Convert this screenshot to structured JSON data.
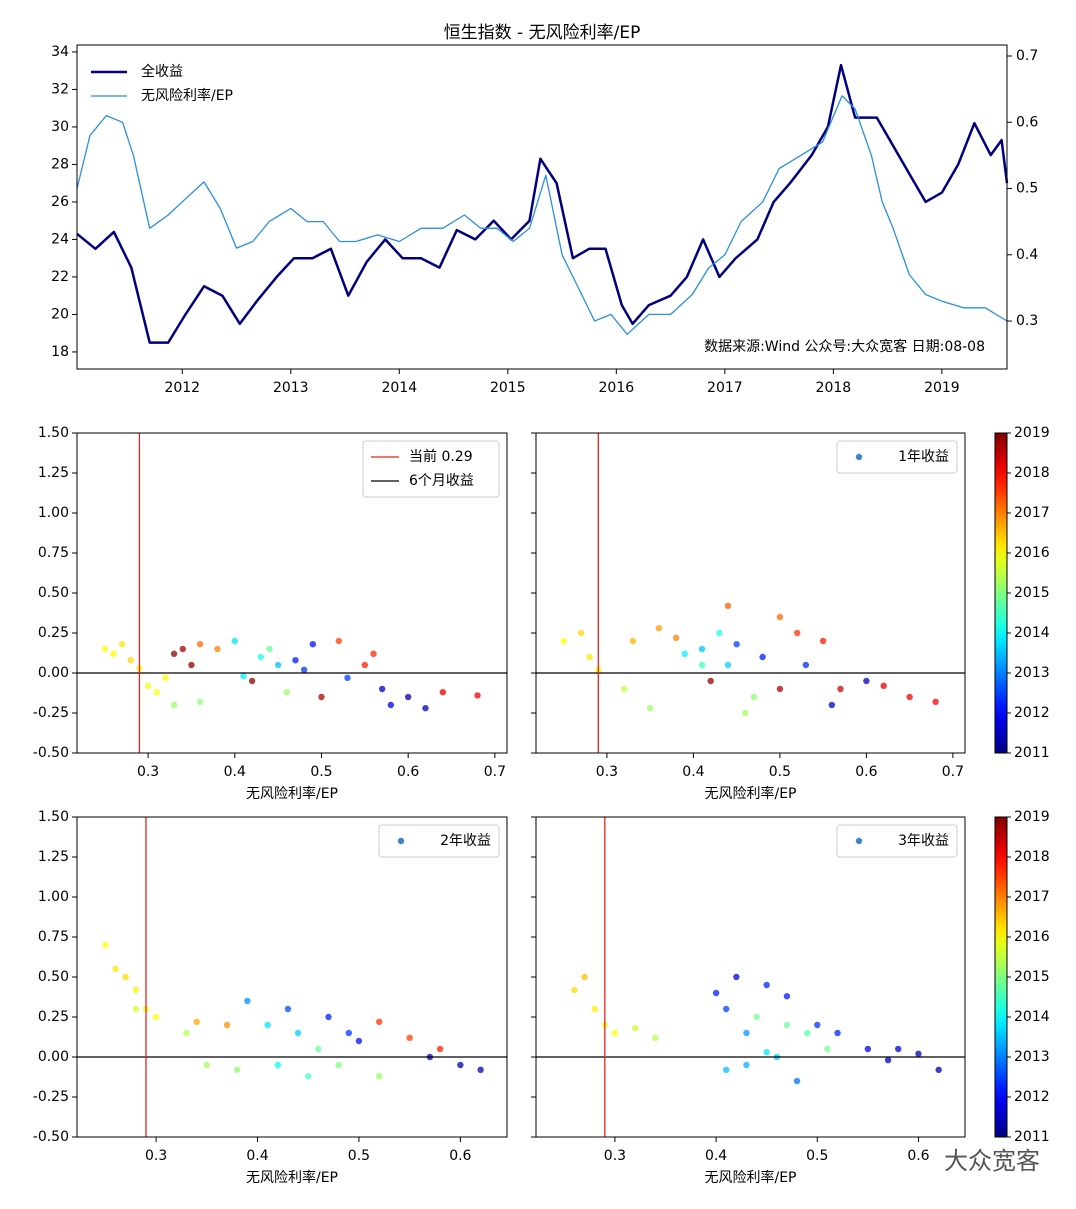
{
  "watermark": "大众宽客",
  "chart_data": [
    {
      "type": "line",
      "title": "恒生指数 - 无风险利率/EP",
      "annotation": "数据来源:Wind  公众号:大众宽客  日期:08-08",
      "legend": "upper left",
      "xlim": [
        2011.03,
        2019.6
      ],
      "xticks": [
        2012,
        2013,
        2014,
        2015,
        2016,
        2017,
        2018,
        2019
      ],
      "ylim": [
        17.09,
        34.37
      ],
      "yticks": [
        18,
        20,
        22,
        24,
        26,
        28,
        30,
        32,
        34
      ],
      "y2lim": [
        0.2276,
        0.7166
      ],
      "y2ticks": [
        0.3,
        0.4,
        0.5,
        0.6,
        0.7
      ],
      "series": [
        {
          "name": "全收益",
          "color": "#00007f",
          "linewidth": 2.5,
          "x": [
            2011.03,
            2011.2,
            2011.37,
            2011.53,
            2011.7,
            2011.87,
            2012.03,
            2012.2,
            2012.37,
            2012.53,
            2012.7,
            2012.87,
            2013.03,
            2013.2,
            2013.37,
            2013.53,
            2013.7,
            2013.87,
            2014.03,
            2014.2,
            2014.37,
            2014.53,
            2014.7,
            2014.87,
            2015.03,
            2015.2,
            2015.3,
            2015.45,
            2015.6,
            2015.75,
            2015.9,
            2016.05,
            2016.15,
            2016.3,
            2016.5,
            2016.65,
            2016.8,
            2016.95,
            2017.1,
            2017.3,
            2017.45,
            2017.6,
            2017.8,
            2017.95,
            2018.07,
            2018.2,
            2018.4,
            2018.55,
            2018.7,
            2018.85,
            2019.0,
            2019.15,
            2019.3,
            2019.45,
            2019.55,
            2019.6
          ],
          "values": [
            24.3,
            23.5,
            24.4,
            22.5,
            18.5,
            18.5,
            20.0,
            21.5,
            21.0,
            19.5,
            20.8,
            22.0,
            23.0,
            23.0,
            23.5,
            21.0,
            22.8,
            24.0,
            23.0,
            23.0,
            22.5,
            24.5,
            24.0,
            25.0,
            24.0,
            25.0,
            28.3,
            27.0,
            23.0,
            23.5,
            23.5,
            20.5,
            19.5,
            20.5,
            21.0,
            22.0,
            24.0,
            22.0,
            23.0,
            24.0,
            26.0,
            27.0,
            28.5,
            30.0,
            33.3,
            30.5,
            30.5,
            29.0,
            27.5,
            26.0,
            26.5,
            28.0,
            30.2,
            28.5,
            29.3,
            27.0
          ]
        },
        {
          "name": "无风险利率/EP",
          "color": "#2a8fdd",
          "linewidth": 1.3,
          "axis": "y2",
          "x": [
            2011.03,
            2011.15,
            2011.3,
            2011.45,
            2011.55,
            2011.7,
            2011.87,
            2012.0,
            2012.2,
            2012.35,
            2012.5,
            2012.65,
            2012.8,
            2013.0,
            2013.15,
            2013.3,
            2013.45,
            2013.6,
            2013.8,
            2014.0,
            2014.2,
            2014.4,
            2014.6,
            2014.75,
            2014.9,
            2015.05,
            2015.2,
            2015.35,
            2015.5,
            2015.65,
            2015.8,
            2015.95,
            2016.1,
            2016.3,
            2016.5,
            2016.7,
            2016.85,
            2017.0,
            2017.15,
            2017.35,
            2017.5,
            2017.7,
            2017.9,
            2018.08,
            2018.2,
            2018.35,
            2018.45,
            2018.55,
            2018.7,
            2018.85,
            2019.0,
            2019.2,
            2019.4,
            2019.6
          ],
          "values": [
            0.5,
            0.58,
            0.61,
            0.6,
            0.55,
            0.44,
            0.46,
            0.48,
            0.51,
            0.47,
            0.41,
            0.42,
            0.45,
            0.47,
            0.45,
            0.45,
            0.42,
            0.42,
            0.43,
            0.42,
            0.44,
            0.44,
            0.46,
            0.44,
            0.44,
            0.42,
            0.44,
            0.52,
            0.4,
            0.35,
            0.3,
            0.31,
            0.28,
            0.31,
            0.31,
            0.34,
            0.38,
            0.4,
            0.45,
            0.48,
            0.53,
            0.55,
            0.57,
            0.64,
            0.62,
            0.55,
            0.48,
            0.44,
            0.37,
            0.34,
            0.33,
            0.32,
            0.32,
            0.3
          ]
        }
      ]
    },
    {
      "type": "scatter",
      "xlabel": "无风险利率/EP",
      "legend": "upper right",
      "legend_handle": "line",
      "ytick_labels": true,
      "colorbar": false,
      "cmap": "jet",
      "clim": [
        2011,
        2019
      ],
      "xlim": [
        0.218,
        0.714
      ],
      "xticks": [
        0.3,
        0.4,
        0.5,
        0.6,
        0.7
      ],
      "ylim": [
        -0.5,
        1.5
      ],
      "yticks": [
        {
          "value": -0.5,
          "label": "-0.50"
        },
        {
          "value": -0.25,
          "label": "-0.25"
        },
        {
          "value": 0,
          "label": "0.00"
        },
        {
          "value": 0.25,
          "label": "0.25"
        },
        {
          "value": 0.5,
          "label": "0.50"
        },
        {
          "value": 0.75,
          "label": "0.75"
        },
        {
          "value": 1,
          "label": "1.00"
        },
        {
          "value": 1.25,
          "label": "1.25"
        },
        {
          "value": 1.5,
          "label": "1.50"
        }
      ],
      "hline": 0,
      "vline": 0.29,
      "vline_color": "#e3261f",
      "vline_label": "当前 0.29",
      "series": [
        {
          "name": "6个月收益",
          "legend_color": "#000000",
          "x": [
            0.25,
            0.26,
            0.27,
            0.28,
            0.29,
            0.3,
            0.31,
            0.32,
            0.33,
            0.34,
            0.35,
            0.33,
            0.36,
            0.36,
            0.38,
            0.4,
            0.41,
            0.43,
            0.44,
            0.45,
            0.46,
            0.47,
            0.48,
            0.42,
            0.5,
            0.52,
            0.55,
            0.56,
            0.57,
            0.58,
            0.6,
            0.62,
            0.64,
            0.68,
            0.53,
            0.49
          ],
          "values": [
            0.15,
            0.12,
            0.18,
            0.08,
            0.03,
            -0.08,
            -0.12,
            -0.03,
            0.12,
            0.15,
            0.05,
            -0.2,
            -0.18,
            0.18,
            0.15,
            0.2,
            -0.02,
            0.1,
            0.15,
            0.05,
            -0.12,
            0.08,
            0.02,
            -0.05,
            -0.15,
            0.2,
            0.05,
            0.12,
            -0.1,
            -0.2,
            -0.15,
            -0.22,
            -0.12,
            -0.14,
            -0.03,
            0.18
          ],
          "c": [
            2016,
            2016,
            2016.2,
            2016.3,
            2016.1,
            2015.9,
            2016,
            2016,
            2018.9,
            2018.7,
            2018.8,
            2015.2,
            2015.1,
            2017.2,
            2017,
            2013.8,
            2013.9,
            2014.2,
            2014.8,
            2013.5,
            2015.2,
            2012.2,
            2012.4,
            2018.9,
            2018.6,
            2017.5,
            2017.8,
            2017.7,
            2011.5,
            2011.8,
            2011.3,
            2011.4,
            2018.2,
            2018.1,
            2012.5,
            2012.1
          ]
        }
      ]
    },
    {
      "type": "scatter",
      "xlabel": "无风险利率/EP",
      "legend": "upper right",
      "legend_handle": "dot",
      "ytick_labels": false,
      "colorbar": true,
      "cmap": "jet",
      "clim": [
        2011,
        2019
      ],
      "cticks": [
        2011,
        2012,
        2013,
        2014,
        2015,
        2016,
        2017,
        2018,
        2019
      ],
      "xlim": [
        0.218,
        0.714
      ],
      "xticks": [
        0.3,
        0.4,
        0.5,
        0.6,
        0.7
      ],
      "ylim": [
        -0.5,
        1.5
      ],
      "yticks": [
        {
          "value": -0.5,
          "label": "-0.50"
        },
        {
          "value": -0.25,
          "label": "-0.25"
        },
        {
          "value": 0,
          "label": "0.00"
        },
        {
          "value": 0.25,
          "label": "0.25"
        },
        {
          "value": 0.5,
          "label": "0.50"
        },
        {
          "value": 0.75,
          "label": "0.75"
        },
        {
          "value": 1,
          "label": "1.00"
        },
        {
          "value": 1.25,
          "label": "1.25"
        },
        {
          "value": 1.5,
          "label": "1.50"
        }
      ],
      "hline": 0,
      "vline": 0.29,
      "vline_color": "#e3261f",
      "series": [
        {
          "name": "1年收益",
          "legend_color": "#3d85c6",
          "x": [
            0.25,
            0.27,
            0.28,
            0.29,
            0.32,
            0.35,
            0.33,
            0.36,
            0.38,
            0.39,
            0.41,
            0.42,
            0.43,
            0.44,
            0.45,
            0.46,
            0.47,
            0.48,
            0.5,
            0.52,
            0.5,
            0.53,
            0.55,
            0.57,
            0.56,
            0.6,
            0.62,
            0.65,
            0.68,
            0.41,
            0.44
          ],
          "values": [
            0.2,
            0.25,
            0.1,
            0.02,
            -0.1,
            -0.22,
            0.2,
            0.28,
            0.22,
            0.12,
            0.15,
            -0.05,
            0.25,
            0.42,
            0.18,
            -0.25,
            -0.15,
            0.1,
            0.35,
            0.25,
            -0.1,
            0.05,
            0.2,
            -0.1,
            -0.2,
            -0.05,
            -0.08,
            -0.15,
            -0.18,
            0.05,
            0.05
          ],
          "c": [
            2016,
            2016.3,
            2016.2,
            2016,
            2015.5,
            2015.2,
            2016.6,
            2016.8,
            2017,
            2013.9,
            2013.5,
            2018.8,
            2014.2,
            2017.3,
            2012.5,
            2015.3,
            2015.1,
            2012.2,
            2017.2,
            2017.6,
            2018.6,
            2012.3,
            2017.8,
            2018.4,
            2011.6,
            2011.4,
            2018.2,
            2018.1,
            2018,
            2014.5,
            2013.6
          ]
        }
      ]
    },
    {
      "type": "scatter",
      "xlabel": "无风险利率/EP",
      "legend": "upper right",
      "legend_handle": "dot",
      "ytick_labels": true,
      "colorbar": false,
      "cmap": "jet",
      "clim": [
        2011,
        2019
      ],
      "xlim": [
        0.222,
        0.646
      ],
      "xticks": [
        0.3,
        0.4,
        0.5,
        0.6
      ],
      "ylim": [
        -0.5,
        1.5
      ],
      "yticks": [
        {
          "value": -0.5,
          "label": "-0.50"
        },
        {
          "value": -0.25,
          "label": "-0.25"
        },
        {
          "value": 0,
          "label": "0.00"
        },
        {
          "value": 0.25,
          "label": "0.25"
        },
        {
          "value": 0.5,
          "label": "0.50"
        },
        {
          "value": 0.75,
          "label": "0.75"
        },
        {
          "value": 1,
          "label": "1.00"
        },
        {
          "value": 1.25,
          "label": "1.25"
        },
        {
          "value": 1.5,
          "label": "1.50"
        }
      ],
      "hline": 0,
      "vline": 0.29,
      "vline_color": "#e3261f",
      "series": [
        {
          "name": "2年收益",
          "legend_color": "#3d85c6",
          "x": [
            0.25,
            0.26,
            0.27,
            0.28,
            0.29,
            0.3,
            0.28,
            0.33,
            0.35,
            0.38,
            0.34,
            0.37,
            0.39,
            0.41,
            0.42,
            0.43,
            0.44,
            0.45,
            0.46,
            0.47,
            0.48,
            0.49,
            0.5,
            0.52,
            0.52,
            0.55,
            0.57,
            0.58,
            0.6,
            0.62
          ],
          "values": [
            0.7,
            0.55,
            0.5,
            0.42,
            0.3,
            0.25,
            0.3,
            0.15,
            -0.05,
            -0.08,
            0.22,
            0.2,
            0.35,
            0.2,
            -0.05,
            0.3,
            0.15,
            -0.12,
            0.05,
            0.25,
            -0.05,
            0.15,
            0.1,
            -0.12,
            0.22,
            0.12,
            0,
            0.05,
            -0.05,
            -0.08
          ],
          "c": [
            2016,
            2016.2,
            2016.3,
            2016.1,
            2015.9,
            2016,
            2015.7,
            2015.4,
            2015.3,
            2015.1,
            2016.7,
            2016.9,
            2013.1,
            2013.8,
            2014,
            2012.6,
            2013.6,
            2014.5,
            2014.8,
            2012.2,
            2015,
            2012.4,
            2012.1,
            2015.2,
            2017.6,
            2017.5,
            2011.6,
            2017.8,
            2011.4,
            2011.3
          ]
        }
      ]
    },
    {
      "type": "scatter",
      "xlabel": "无风险利率/EP",
      "legend": "upper right",
      "legend_handle": "dot",
      "ytick_labels": false,
      "colorbar": true,
      "cmap": "jet",
      "clim": [
        2011,
        2019
      ],
      "cticks": [
        2011,
        2012,
        2013,
        2014,
        2015,
        2016,
        2017,
        2018,
        2019
      ],
      "xlim": [
        0.222,
        0.646
      ],
      "xticks": [
        0.3,
        0.4,
        0.5,
        0.6
      ],
      "ylim": [
        -0.5,
        1.5
      ],
      "yticks": [
        {
          "value": -0.5,
          "label": "-0.50"
        },
        {
          "value": -0.25,
          "label": "-0.25"
        },
        {
          "value": 0,
          "label": "0.00"
        },
        {
          "value": 0.25,
          "label": "0.25"
        },
        {
          "value": 0.5,
          "label": "0.50"
        },
        {
          "value": 0.75,
          "label": "0.75"
        },
        {
          "value": 1,
          "label": "1.00"
        },
        {
          "value": 1.25,
          "label": "1.25"
        },
        {
          "value": 1.5,
          "label": "1.50"
        }
      ],
      "hline": 0,
      "vline": 0.29,
      "vline_color": "#e3261f",
      "series": [
        {
          "name": "3年收益",
          "legend_color": "#3d85c6",
          "x": [
            0.26,
            0.27,
            0.28,
            0.29,
            0.3,
            0.32,
            0.34,
            0.4,
            0.41,
            0.42,
            0.41,
            0.43,
            0.44,
            0.45,
            0.46,
            0.47,
            0.48,
            0.47,
            0.49,
            0.5,
            0.51,
            0.52,
            0.55,
            0.57,
            0.58,
            0.6,
            0.62,
            0.45,
            0.43
          ],
          "values": [
            0.42,
            0.5,
            0.3,
            0.2,
            0.15,
            0.18,
            0.12,
            0.4,
            0.3,
            0.5,
            -0.08,
            0.15,
            0.25,
            0.45,
            0,
            0.2,
            -0.15,
            0.38,
            0.15,
            0.2,
            0.05,
            0.15,
            0.05,
            -0.02,
            0.05,
            0.02,
            -0.08,
            0.03,
            -0.05
          ],
          "c": [
            2016.3,
            2016.5,
            2016.1,
            2015.9,
            2016,
            2015.6,
            2015.4,
            2012.2,
            2012.5,
            2011.8,
            2013.5,
            2013.2,
            2014.9,
            2012.3,
            2013.6,
            2014.8,
            2012.9,
            2012.2,
            2014.7,
            2012.4,
            2014.9,
            2012.3,
            2011.8,
            2011.5,
            2011.7,
            2011.4,
            2011.3,
            2013.8,
            2013.4
          ]
        }
      ]
    }
  ]
}
